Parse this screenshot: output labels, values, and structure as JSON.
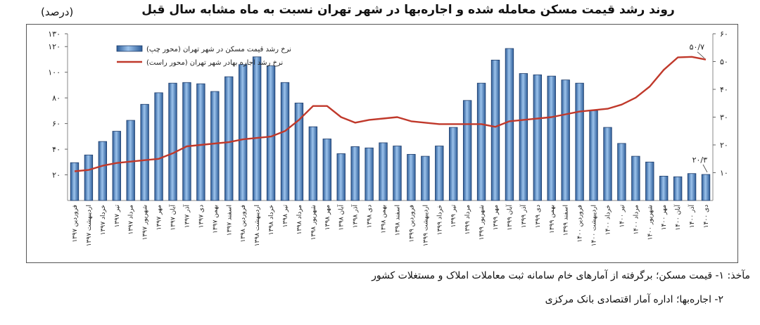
{
  "chart_data": {
    "type": "bar",
    "title": "روند رشد قیمت مسکن معامله شده و اجاره‌بها در شهر تهران نسبت به ماه مشابه سال قبل",
    "unit": "(درصد)",
    "categories": [
      "فروردین ۱۳۹۷",
      "اردیبهشت ۱۳۹۷",
      "خرداد ۱۳۹۷",
      "تیر ۱۳۹۷",
      "مرداد ۱۳۹۷",
      "شهریور ۱۳۹۷",
      "مهر ۱۳۹۷",
      "آبان ۱۳۹۷",
      "آذر ۱۳۹۷",
      "دی ۱۳۹۷",
      "بهمن ۱۳۹۷",
      "اسفند ۱۳۹۷",
      "فروردین ۱۳۹۸",
      "اردیبهشت ۱۳۹۸",
      "خرداد ۱۳۹۸",
      "تیر ۱۳۹۸",
      "مرداد ۱۳۹۸",
      "شهریور ۱۳۹۸",
      "مهر ۱۳۹۸",
      "آبان ۱۳۹۸",
      "آذر ۱۳۹۸",
      "دی ۱۳۹۸",
      "بهمن ۱۳۹۸",
      "اسفند ۱۳۹۸",
      "فروردین ۱۳۹۹",
      "اردیبهشت ۱۳۹۹",
      "خرداد ۱۳۹۹",
      "تیر ۱۳۹۹",
      "مرداد ۱۳۹۹",
      "شهریور ۱۳۹۹",
      "مهر ۱۳۹۹",
      "آبان ۱۳۹۹",
      "آذر ۱۳۹۹",
      "دی ۱۳۹۹",
      "بهمن ۱۳۹۹",
      "اسفند ۱۳۹۹",
      "فروردین ۱۴۰۰",
      "اردیبهشت ۱۴۰۰",
      "خرداد ۱۴۰۰",
      "تیر ۱۴۰۰",
      "مرداد ۱۴۰۰",
      "شهریور ۱۴۰۰",
      "مهر ۱۴۰۰",
      "آبان ۱۴۰۰",
      "آذر ۱۴۰۰",
      "دی ۱۴۰۰"
    ],
    "series": [
      {
        "name": "نرخ رشد قیمت مسکن در شهر تهران (محور چپ)",
        "type": "bar",
        "axis": "left",
        "color": "#4a7fc0",
        "values": [
          29.5,
          35.5,
          46,
          54,
          62.5,
          75,
          84,
          91.5,
          92,
          91,
          85,
          96.5,
          106,
          112,
          105,
          92,
          76,
          57.5,
          48,
          36.5,
          42,
          41,
          45,
          42.5,
          36,
          34.5,
          42.5,
          57,
          78,
          91.5,
          109.5,
          118.5,
          99,
          98,
          97,
          94,
          91.5,
          70,
          57,
          44.5,
          34.5,
          30,
          19,
          18.5,
          21,
          20.3
        ]
      },
      {
        "name": "نرخ رشد اجاره بهادر شهر تهران (محور راست)",
        "type": "line",
        "axis": "right",
        "color": "#c0392b",
        "values": [
          10.5,
          11,
          12.5,
          13.5,
          14,
          14.5,
          15,
          17,
          19.5,
          20,
          20.5,
          21,
          22,
          22.5,
          23,
          25,
          29,
          34,
          34,
          30,
          28,
          29,
          29.5,
          30,
          28.5,
          28,
          27.5,
          27.5,
          27.5,
          27.5,
          26.5,
          28.5,
          29,
          29.5,
          30,
          31,
          32,
          32.5,
          33,
          34.5,
          37,
          41,
          47,
          51.5,
          51.7,
          50.7
        ]
      }
    ],
    "annotations": [
      {
        "label": "۵۰/۷",
        "series": 1,
        "index": 45
      },
      {
        "label": "۲۰/۳",
        "series": 0,
        "index": 45
      }
    ],
    "y_left": {
      "min": 0,
      "max": 130,
      "ticks": [
        20,
        40,
        60,
        80,
        100,
        120,
        130
      ],
      "tick_labels": [
        "۲۰",
        "۴۰",
        "۶۰",
        "۸۰",
        "۱۰۰",
        "۱۲۰",
        "۱۳۰"
      ]
    },
    "y_right": {
      "min": 0,
      "max": 60,
      "ticks": [
        10,
        20,
        30,
        40,
        50,
        60
      ],
      "tick_labels": [
        "۱۰",
        "۲۰",
        "۳۰",
        "۴۰",
        "۵۰",
        "۶۰"
      ]
    },
    "grid": false,
    "legend": "top-left"
  },
  "sources": {
    "line1": "مآخذ: ۱- قیمت مسکن؛ برگرفته از آمارهای خام سامانه ثبت معاملات املاک و مستغلات کشور",
    "line2": "۲- اجاره‌بها؛ اداره آمار اقتصادی بانک مرکزی"
  },
  "colors": {
    "bar": "#4a7fc0",
    "bar_edge": "#1f3d6b",
    "line": "#c0392b",
    "frame": "#555555"
  }
}
